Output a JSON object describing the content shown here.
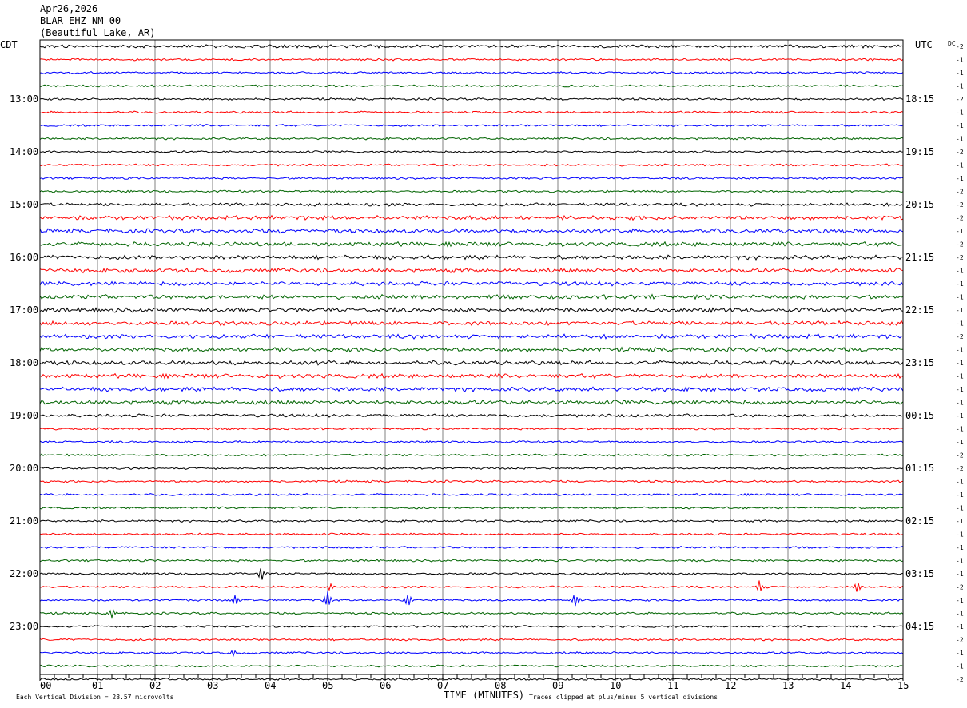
{
  "header": {
    "date": "Apr26,2026",
    "station": "BLAR EHZ NM 00",
    "location": "(Beautiful Lake, AR)"
  },
  "left_axis_label": "CDT",
  "right_axis_label": "UTC",
  "dc_label": "DC",
  "footer": {
    "scale_note": "Each Vertical Division =   28.57 microvolts",
    "clip_note": "Traces clipped at plus/minus 5 vertical divisions"
  },
  "colors": {
    "trace_cycle": [
      "#000000",
      "#ff0000",
      "#0000ff",
      "#006400"
    ],
    "grid": "#808080"
  },
  "chart_data": {
    "type": "line",
    "xlabel": "TIME (MINUTES)",
    "x_ticks": [
      "00",
      "01",
      "02",
      "03",
      "04",
      "05",
      "06",
      "07",
      "08",
      "09",
      "10",
      "11",
      "12",
      "13",
      "14",
      "15"
    ],
    "xlim": [
      0,
      15
    ],
    "rows_per_hour": 4,
    "minutes_per_row": 15,
    "cdt_labels": [
      "13:00",
      "14:00",
      "15:00",
      "16:00",
      "17:00",
      "18:00",
      "19:00",
      "20:00",
      "21:00",
      "22:00",
      "23:00"
    ],
    "utc_labels": [
      "18:15",
      "19:15",
      "20:15",
      "21:15",
      "22:15",
      "23:15",
      "00:15",
      "01:15",
      "02:15",
      "03:15",
      "04:15"
    ],
    "dc_offsets": [
      "-2",
      "-1",
      "-1",
      "-1",
      "-2",
      "-1",
      "-1",
      "-1",
      "-2",
      "-1",
      "-1",
      "-2",
      "-2",
      "-2",
      "-1",
      "-2",
      "-2",
      "-1",
      "-1",
      "-1",
      "-1",
      "-1",
      "-2",
      "-1",
      "-1",
      "-1",
      "-1",
      "-1",
      "-1",
      "-1",
      "-1",
      "-2",
      "-2",
      "-1",
      "-1",
      "-1",
      "-1",
      "-1",
      "-1",
      "-1",
      "-1",
      "-2",
      "-1",
      "-1",
      "-1",
      "-2",
      "-1",
      "-1",
      "-2"
    ],
    "noise_level": [
      3,
      2,
      2,
      2,
      2,
      2,
      2,
      2,
      2,
      2,
      2,
      2,
      3,
      4,
      4,
      4,
      4,
      4,
      4,
      4,
      4,
      4,
      4,
      4,
      4,
      4,
      4,
      4,
      3,
      2,
      2,
      2,
      2,
      2,
      2,
      2,
      2,
      2,
      2,
      2,
      2,
      2,
      2,
      2,
      2,
      2,
      2,
      2,
      2
    ],
    "events": [
      {
        "row": 40,
        "minute": 3.85,
        "amplitude": 9
      },
      {
        "row": 41,
        "minute": 5.05,
        "amplitude": 6
      },
      {
        "row": 41,
        "minute": 12.5,
        "amplitude": 8
      },
      {
        "row": 41,
        "minute": 14.2,
        "amplitude": 8
      },
      {
        "row": 42,
        "minute": 3.4,
        "amplitude": 7
      },
      {
        "row": 42,
        "minute": 5.0,
        "amplitude": 11
      },
      {
        "row": 42,
        "minute": 6.4,
        "amplitude": 9
      },
      {
        "row": 42,
        "minute": 9.3,
        "amplitude": 8
      },
      {
        "row": 43,
        "minute": 1.25,
        "amplitude": 6
      },
      {
        "row": 46,
        "minute": 3.35,
        "amplitude": 5
      }
    ]
  }
}
